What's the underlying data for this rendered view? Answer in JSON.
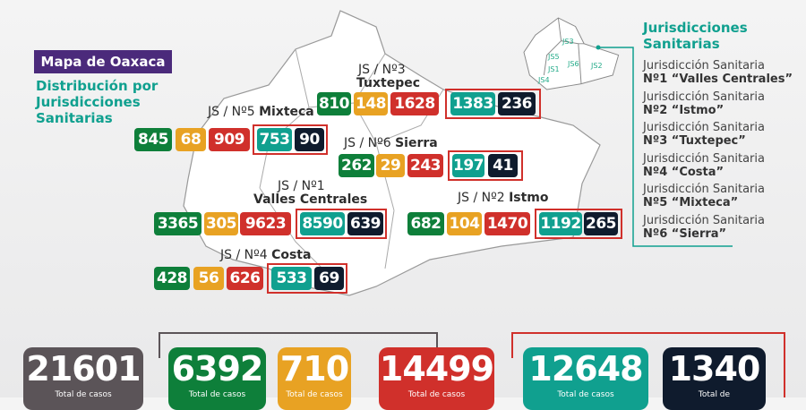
{
  "title": "Mapa de Oaxaca",
  "subtitle": [
    "Distribución por",
    "Jurisdicciones",
    "Sanitarias"
  ],
  "colors": {
    "green": "#0e7f3a",
    "orange": "#e8a223",
    "red": "#d0302b",
    "teal": "#10a08f",
    "navy": "#0f1b2d",
    "gray": "#5b5458",
    "purple": "#4b2a7b"
  },
  "legend": {
    "title": [
      "Jurisdicciones",
      "Sanitarias"
    ],
    "items": [
      {
        "line1": "Jurisdicción Sanitaria",
        "line2": "Nº1 “Valles Centrales”"
      },
      {
        "line1": "Jurisdicción Sanitaria",
        "line2": "Nº2 “Istmo”"
      },
      {
        "line1": "Jurisdicción Sanitaria",
        "line2": "Nº3 “Tuxtepec”"
      },
      {
        "line1": "Jurisdicción Sanitaria",
        "line2": "Nº4 “Costa”"
      },
      {
        "line1": "Jurisdicción Sanitaria",
        "line2": "Nº5 “Mixteca”"
      },
      {
        "line1": "Jurisdicción Sanitaria",
        "line2": "Nº6 “Sierra”"
      }
    ]
  },
  "minimap": [
    "JS1",
    "JS2",
    "JS3",
    "JS4",
    "JS5",
    "JS6"
  ],
  "regions": {
    "tuxtepec": {
      "label1": "JS / Nº3",
      "label2": "Tuxtepec",
      "v": [
        "810",
        "148",
        "1628",
        "1383",
        "236"
      ]
    },
    "mixteca": {
      "label1": "JS / Nº5",
      "label2": "Mixteca",
      "v": [
        "845",
        "68",
        "909",
        "753",
        "90"
      ]
    },
    "sierra": {
      "label1": "JS / Nº6",
      "label2": "Sierra",
      "v": [
        "262",
        "29",
        "243",
        "197",
        "41"
      ]
    },
    "valles": {
      "label1": "JS / Nº1",
      "label2": "Valles Centrales",
      "v": [
        "3365",
        "305",
        "9623",
        "8590",
        "639"
      ]
    },
    "istmo": {
      "label1": "JS / Nº2",
      "label2": "Istmo",
      "v": [
        "682",
        "104",
        "1470",
        "1192",
        "265"
      ]
    },
    "costa": {
      "label1": "JS / Nº4",
      "label2": "Costa",
      "v": [
        "428",
        "56",
        "626",
        "533",
        "69"
      ]
    }
  },
  "totals": [
    {
      "value": "21601",
      "caption": "Total de casos"
    },
    {
      "value": "6392",
      "caption": "Total de casos"
    },
    {
      "value": "710",
      "caption": "Total de casos"
    },
    {
      "value": "14499",
      "caption": "Total de casos"
    },
    {
      "value": "12648",
      "caption": "Total de casos"
    },
    {
      "value": "1340",
      "caption": "Total de"
    }
  ]
}
